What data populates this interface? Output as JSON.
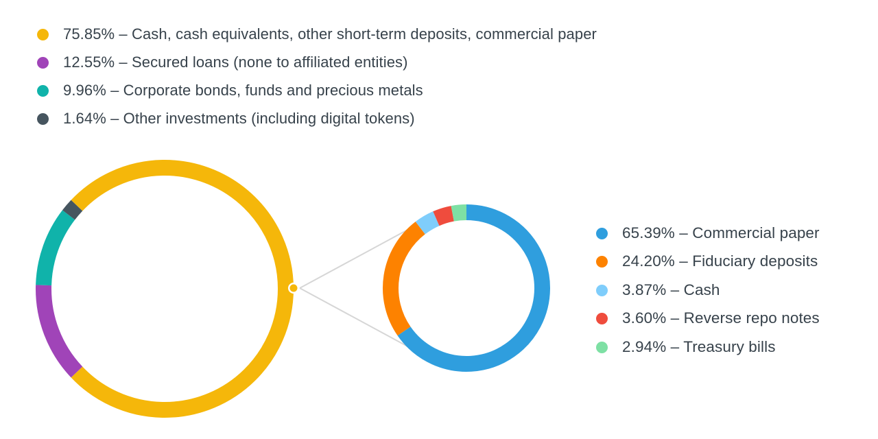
{
  "chart_data": [
    {
      "type": "pie",
      "subtype": "donut",
      "title": "",
      "rotation_note": "first segment centered at 3 o'clock",
      "series": [
        {
          "name": "Cash, cash equivalents, other short-term deposits, commercial paper",
          "value": 75.85,
          "color": "#f5b70a"
        },
        {
          "name": "Secured loans (none to affiliated entities)",
          "value": 12.55,
          "color": "#a044b8"
        },
        {
          "name": "Corporate bonds, funds and precious metals",
          "value": 9.96,
          "color": "#10b3aa"
        },
        {
          "name": "Other investments (including digital tokens)",
          "value": 1.64,
          "color": "#46555f"
        }
      ],
      "legend_position": "top"
    },
    {
      "type": "pie",
      "subtype": "donut",
      "title": "",
      "breakdown_of": "Cash, cash equivalents, other short-term deposits, commercial paper",
      "series": [
        {
          "name": "Commercial paper",
          "value": 65.39,
          "color": "#2f9ede"
        },
        {
          "name": "Fiduciary deposits",
          "value": 24.2,
          "color": "#fd8200"
        },
        {
          "name": "Cash",
          "value": 3.87,
          "color": "#7fcdfb"
        },
        {
          "name": "Reverse repo notes",
          "value": 3.6,
          "color": "#ef4c3d"
        },
        {
          "name": "Treasury bills",
          "value": 2.94,
          "color": "#7ee0a4"
        }
      ],
      "legend_position": "right"
    }
  ],
  "top_legend": [
    {
      "text": "75.85% – Cash, cash equivalents, other short-term deposits, commercial paper",
      "color": "#f5b70a"
    },
    {
      "text": "12.55% – Secured loans (none to affiliated entities)",
      "color": "#a044b8"
    },
    {
      "text": "9.96% – Corporate bonds, funds and precious metals",
      "color": "#10b3aa"
    },
    {
      "text": "1.64% – Other investments (including digital tokens)",
      "color": "#46555f"
    }
  ],
  "right_legend": [
    {
      "text": "65.39% – Commercial paper",
      "color": "#2f9ede"
    },
    {
      "text": "24.20% – Fiduciary deposits",
      "color": "#fd8200"
    },
    {
      "text": "3.87% – Cash",
      "color": "#7fcdfb"
    },
    {
      "text": "3.60% – Reverse repo notes",
      "color": "#ef4c3d"
    },
    {
      "text": "2.94% – Treasury bills",
      "color": "#7ee0a4"
    }
  ],
  "connector": {
    "color": "#d6d6d6",
    "dot_color": "#f5b70a"
  }
}
